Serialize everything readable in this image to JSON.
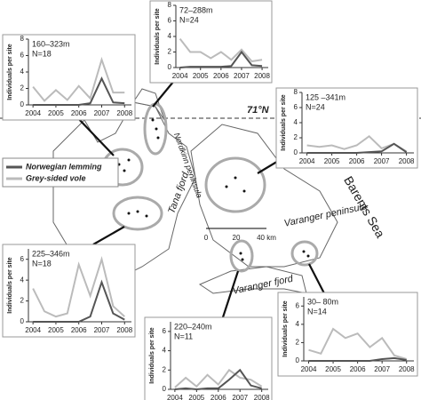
{
  "chart_data": [
    {
      "type": "line",
      "title": "160–323m",
      "subtitle": "N=18",
      "y_label": "Individuals per site",
      "x": [
        2004,
        2004.5,
        2005,
        2005.5,
        2006,
        2006.5,
        2007,
        2007.5,
        2008
      ],
      "xlim": [
        2003.8,
        2008.3
      ],
      "xticks": [
        2004,
        2005,
        2006,
        2007,
        2008
      ],
      "ylim": [
        0,
        8
      ],
      "yticks": [
        0,
        2,
        4,
        6,
        8
      ],
      "series": [
        {
          "name": "Norwegian lemming",
          "color": "#555555",
          "values": [
            0,
            0,
            0,
            0,
            0,
            0.2,
            3.2,
            0.3,
            0.2
          ]
        },
        {
          "name": "Grey-sided vole",
          "color": "#bbbbbb",
          "values": [
            2.2,
            0.5,
            1.8,
            0.6,
            2.3,
            0.8,
            5.5,
            1.5,
            1.5
          ]
        }
      ]
    },
    {
      "type": "line",
      "title": "72–288m",
      "subtitle": "N=24",
      "y_label": "Individuals per site",
      "x": [
        2004,
        2004.5,
        2005,
        2005.5,
        2006,
        2006.5,
        2007,
        2007.5,
        2008
      ],
      "xlim": [
        2003.8,
        2008.3
      ],
      "xticks": [
        2004,
        2005,
        2006,
        2007,
        2008
      ],
      "ylim": [
        0,
        8
      ],
      "yticks": [
        0,
        2,
        4,
        6,
        8
      ],
      "series": [
        {
          "name": "Norwegian lemming",
          "color": "#555555",
          "values": [
            0,
            0.1,
            0.1,
            0.1,
            0.1,
            0.2,
            2.0,
            0.3,
            0.2
          ]
        },
        {
          "name": "Grey-sided vole",
          "color": "#bbbbbb",
          "values": [
            3.7,
            2.0,
            2.0,
            1.2,
            2.0,
            1.0,
            2.3,
            0.8,
            1.0
          ]
        }
      ]
    },
    {
      "type": "line",
      "title": "125 –341m",
      "subtitle": "N=24",
      "y_label": "Individuals per site",
      "x": [
        2004,
        2004.5,
        2005,
        2005.5,
        2006,
        2006.5,
        2007,
        2007.5,
        2008
      ],
      "xlim": [
        2003.8,
        2008.3
      ],
      "xticks": [
        2004,
        2005,
        2006,
        2007,
        2008
      ],
      "ylim": [
        0,
        8
      ],
      "yticks": [
        0,
        2,
        4,
        6,
        8
      ],
      "series": [
        {
          "name": "Norwegian lemming",
          "color": "#555555",
          "values": [
            0,
            0,
            0,
            0,
            0,
            0.1,
            0.2,
            1.2,
            0.1
          ]
        },
        {
          "name": "Grey-sided vole",
          "color": "#bbbbbb",
          "values": [
            1.0,
            0.8,
            1.0,
            0.5,
            1.0,
            2.2,
            0.6,
            1.2,
            0.2
          ]
        }
      ]
    },
    {
      "type": "line",
      "title": "225–346m",
      "subtitle": "N=18",
      "y_label": "Individuals per site",
      "x": [
        2004,
        2004.5,
        2005,
        2005.5,
        2006,
        2006.5,
        2007,
        2007.5,
        2008
      ],
      "xlim": [
        2003.8,
        2008.3
      ],
      "xticks": [
        2004,
        2005,
        2006,
        2007,
        2008
      ],
      "ylim": [
        0,
        7
      ],
      "yticks": [
        0,
        2,
        4,
        6
      ],
      "series": [
        {
          "name": "Norwegian lemming",
          "color": "#555555",
          "values": [
            0,
            0,
            0,
            0,
            0,
            0.5,
            3.8,
            0.8,
            0.2
          ]
        },
        {
          "name": "Grey-sided vole",
          "color": "#bbbbbb",
          "values": [
            3.2,
            1.0,
            0.5,
            0.8,
            5.5,
            2.5,
            6.0,
            1.5,
            0.5
          ]
        }
      ]
    },
    {
      "type": "line",
      "title": "220–240m",
      "subtitle": "N=11",
      "y_label": "Individuals per site",
      "x": [
        2004,
        2004.5,
        2005,
        2005.5,
        2006,
        2006.5,
        2007,
        2007.5,
        2008
      ],
      "xlim": [
        2003.8,
        2008.3
      ],
      "xticks": [
        2004,
        2005,
        2006,
        2007,
        2008
      ],
      "ylim": [
        0,
        7
      ],
      "yticks": [
        0,
        2,
        4,
        6
      ],
      "series": [
        {
          "name": "Norwegian lemming",
          "color": "#555555",
          "values": [
            0,
            0.1,
            0,
            0.1,
            0.1,
            1.0,
            2.0,
            0.4,
            0.1
          ]
        },
        {
          "name": "Grey-sided vole",
          "color": "#bbbbbb",
          "values": [
            0.2,
            1.2,
            0.3,
            1.5,
            0.5,
            2.0,
            1.2,
            1.0,
            0.3
          ]
        }
      ]
    },
    {
      "type": "line",
      "title": "30– 80m",
      "subtitle": "N=14",
      "y_label": "Individuals per site",
      "x": [
        2004,
        2004.5,
        2005,
        2005.5,
        2006,
        2006.5,
        2007,
        2007.5,
        2008
      ],
      "xlim": [
        2003.8,
        2008.3
      ],
      "xticks": [
        2004,
        2005,
        2006,
        2007,
        2008
      ],
      "ylim": [
        0,
        7
      ],
      "yticks": [
        0,
        2,
        4,
        6
      ],
      "series": [
        {
          "name": "Norwegian lemming",
          "color": "#555555",
          "values": [
            0,
            0,
            0,
            0,
            0,
            0,
            0.2,
            0.3,
            0.1
          ]
        },
        {
          "name": "Grey-sided vole",
          "color": "#bbbbbb",
          "values": [
            1.2,
            0.8,
            3.5,
            2.5,
            3.0,
            1.5,
            2.5,
            0.6,
            0.2
          ]
        }
      ]
    }
  ],
  "map": {
    "latitude": "71°N",
    "nordkinn": "Nordkinn peninsula",
    "tana": "Tana fjord",
    "sea": "Barents Sea",
    "varanger": "Varanger peninsula",
    "varanger_fjord": "Varanger fjord",
    "scale_labels": [
      "0",
      "20",
      "40 km"
    ]
  }
}
